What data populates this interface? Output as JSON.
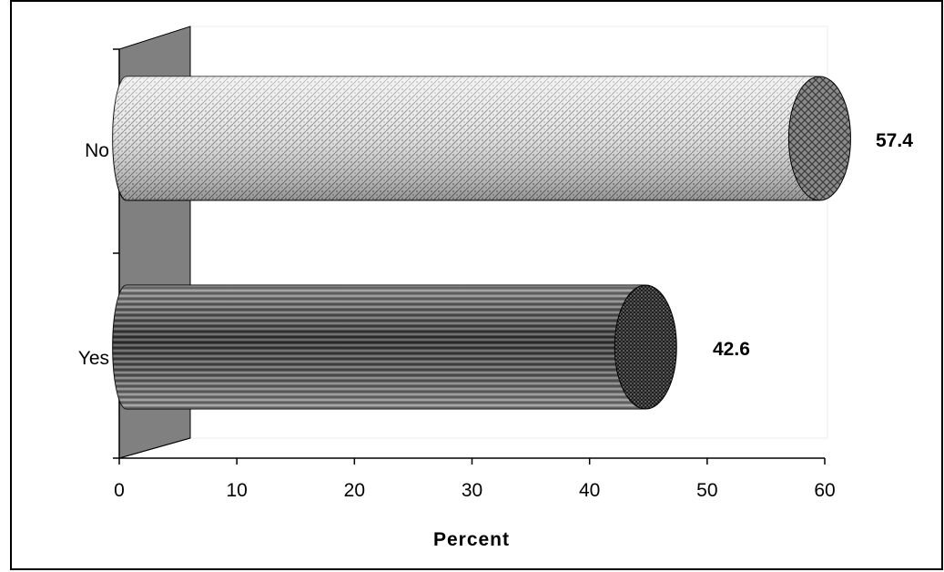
{
  "chart_data": {
    "type": "bar",
    "orientation": "horizontal",
    "style": "3d-cylinder",
    "categories": [
      "No",
      "Yes"
    ],
    "values": [
      57.4,
      42.6
    ],
    "data_labels": [
      "57.4",
      "42.6"
    ],
    "xlabel": "Percent",
    "ylabel": "",
    "title": "",
    "xlim": [
      0,
      60
    ],
    "xticks": [
      0,
      10,
      20,
      30,
      40,
      50,
      60
    ],
    "xtick_labels": [
      "0",
      "10",
      "20",
      "30",
      "40",
      "50",
      "60"
    ],
    "grid": false,
    "legend": "none",
    "colors": {
      "no_bar": "#d9d9d9",
      "yes_bar": "#3a3a3a",
      "wall": "#808080",
      "frame": "#000000"
    }
  }
}
